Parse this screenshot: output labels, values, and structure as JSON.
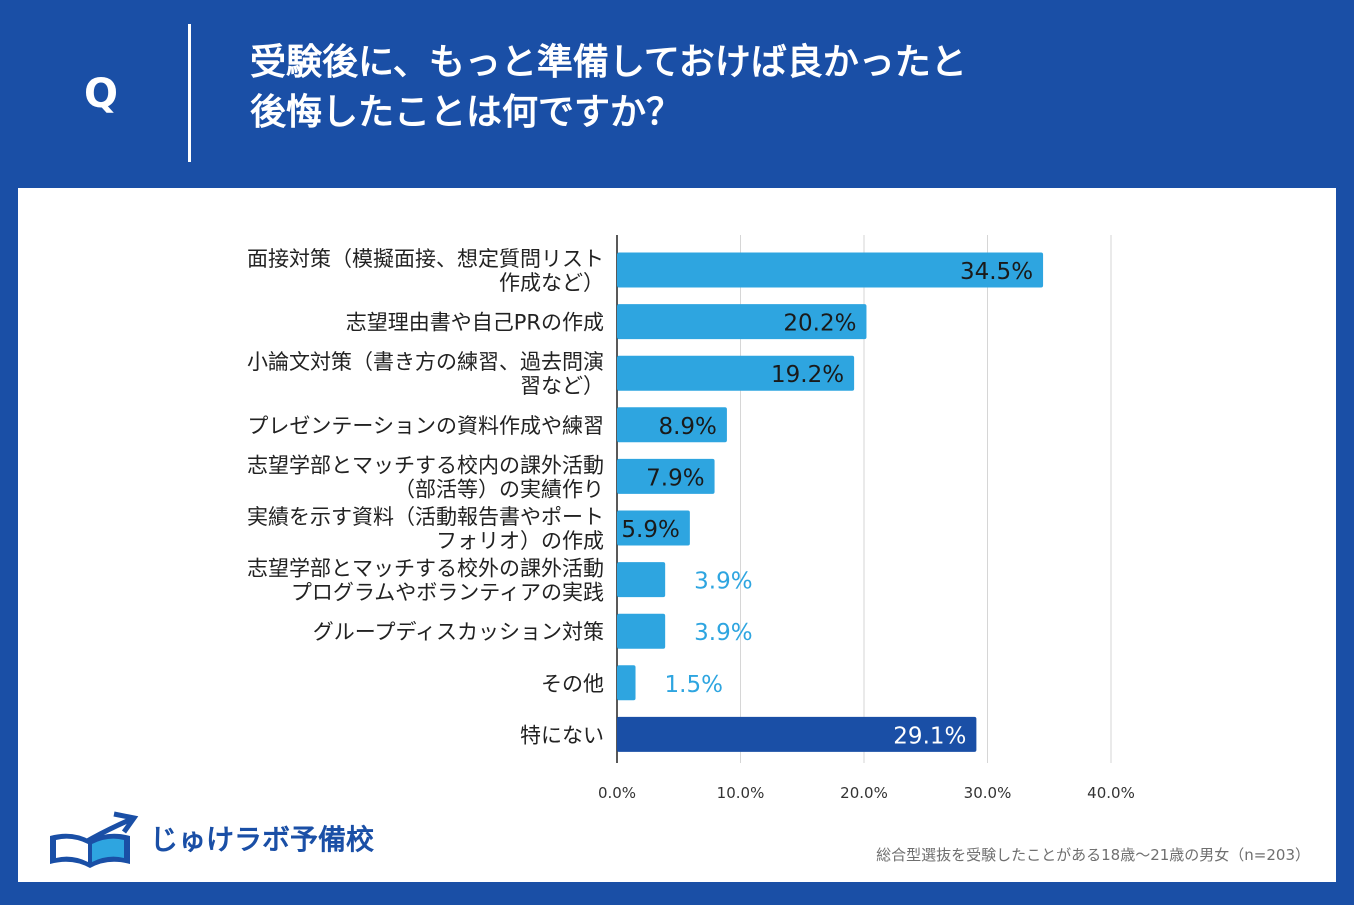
{
  "question": {
    "mark": "Q",
    "line1": "受験後に、もっと準備しておけば良かったと",
    "line2": "後悔したことは何ですか？"
  },
  "chart_data": {
    "type": "bar",
    "orientation": "horizontal",
    "categories": [
      [
        "面接対策（模擬面接、想定質問リスト",
        "作成など）"
      ],
      [
        "志望理由書や自己PRの作成"
      ],
      [
        "小論文対策（書き方の練習、過去問演",
        "習など）"
      ],
      [
        "プレゼンテーションの資料作成や練習"
      ],
      [
        "志望学部とマッチする校内の課外活動",
        "（部活等）の実績作り"
      ],
      [
        "実績を示す資料（活動報告書やポート",
        "フォリオ）の作成"
      ],
      [
        "志望学部とマッチする校外の課外活動",
        "プログラムやボランティアの実践"
      ],
      [
        "グループディスカッション対策"
      ],
      [
        "その他"
      ],
      [
        "特にない"
      ]
    ],
    "values": [
      34.5,
      20.2,
      19.2,
      8.9,
      7.9,
      5.9,
      3.9,
      3.9,
      1.5,
      29.1
    ],
    "value_labels": [
      "34.5%",
      "20.2%",
      "19.2%",
      "8.9%",
      "7.9%",
      "5.9%",
      "3.9%",
      "3.9%",
      "1.5%",
      "29.1%"
    ],
    "highlight_index": 9,
    "xlim": [
      0,
      40
    ],
    "x_ticks": [
      0,
      10,
      20,
      30,
      40
    ],
    "x_tick_labels": [
      "0.0%",
      "10.0%",
      "20.0%",
      "30.0%",
      "40.0%"
    ],
    "grid": true,
    "colors": {
      "bar": "#2ea5e0",
      "highlight": "#1a4fa6",
      "grid": "#d6d6d6",
      "axis": "#222222",
      "inside_label": "#1a1a1a",
      "outside_label": "#2ea5e0"
    }
  },
  "logo": {
    "text": "じゅけラボ予備校"
  },
  "footnote": "総合型選抜を受験したことがある18歳～21歳の男女（n=203）"
}
